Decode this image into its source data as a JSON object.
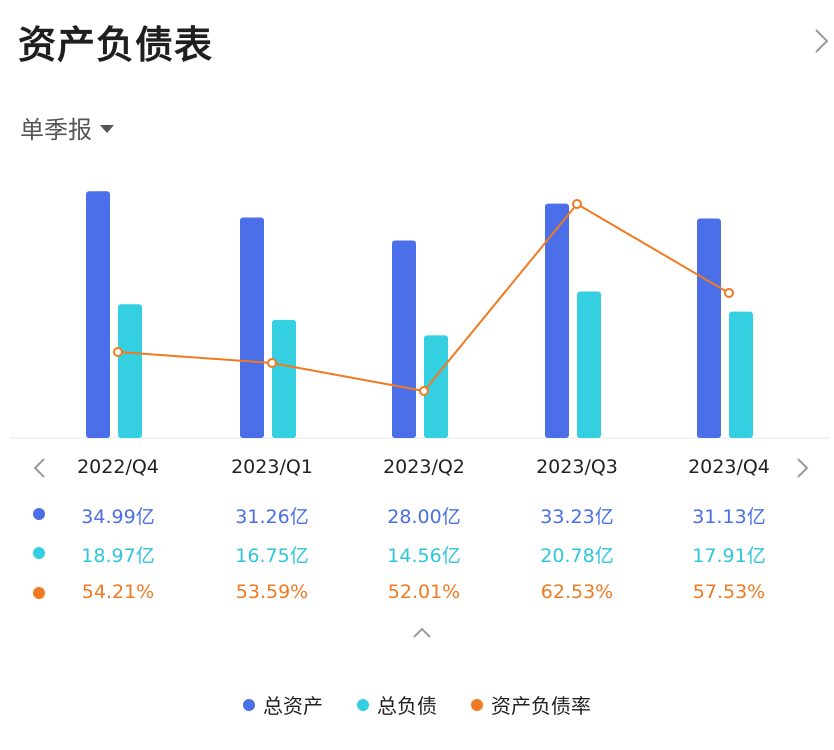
{
  "header": {
    "title": "资产负债表"
  },
  "period": {
    "label": "单季报"
  },
  "colors": {
    "assets": "#4a6fe8",
    "liabilities": "#35cfe2",
    "ratio": "#f07a22"
  },
  "chart_data": {
    "type": "bar",
    "categories": [
      "2022/Q4",
      "2023/Q1",
      "2023/Q2",
      "2023/Q3",
      "2023/Q4"
    ],
    "series": [
      {
        "name": "总资产",
        "type": "bar",
        "values": [
          34.99,
          31.26,
          28.0,
          33.23,
          31.13
        ],
        "unit": "亿",
        "labels": [
          "34.99亿",
          "31.26亿",
          "28.00亿",
          "33.23亿",
          "31.13亿"
        ]
      },
      {
        "name": "总负债",
        "type": "bar",
        "values": [
          18.97,
          16.75,
          14.56,
          20.78,
          17.91
        ],
        "unit": "亿",
        "labels": [
          "18.97亿",
          "16.75亿",
          "14.56亿",
          "20.78亿",
          "17.91亿"
        ]
      },
      {
        "name": "资产负债率",
        "type": "line",
        "values": [
          54.21,
          53.59,
          52.01,
          62.53,
          57.53
        ],
        "unit": "%",
        "labels": [
          "54.21%",
          "53.59%",
          "52.01%",
          "62.53%",
          "57.53%"
        ]
      }
    ],
    "bar_range": [
      0,
      38
    ],
    "line_range": [
      49.5,
      63.5
    ],
    "legend": [
      "总资产",
      "总负债",
      "资产负债率"
    ],
    "legend_position": "bottom"
  }
}
